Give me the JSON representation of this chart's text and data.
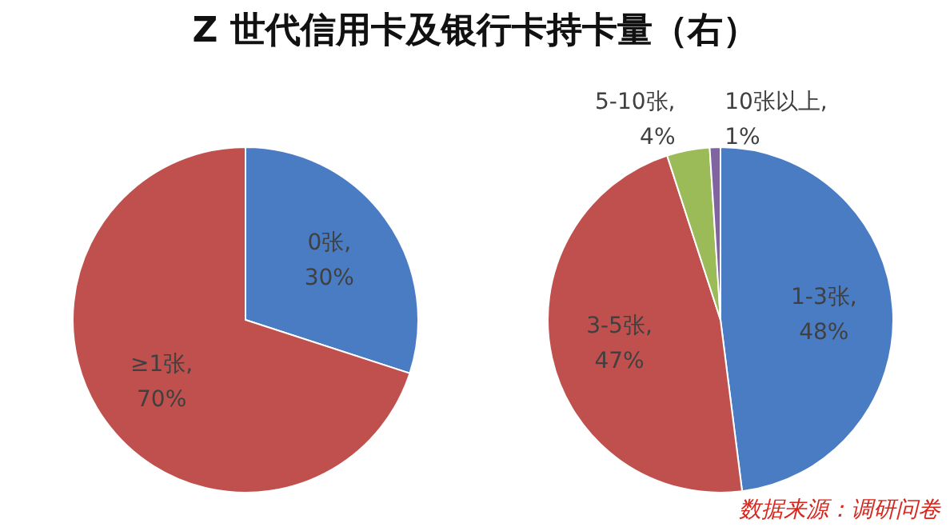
{
  "chart_data": [
    {
      "type": "pie",
      "title": "Z 世代信用卡及银行卡持卡量（右）",
      "categories": [
        "0张",
        "≥1张"
      ],
      "values": [
        30,
        70
      ],
      "colors": [
        "#4a7cc4",
        "#c0504d"
      ],
      "value_labels": [
        ", 30%",
        ", 70%"
      ],
      "legend": false
    },
    {
      "type": "pie",
      "categories": [
        "1-3张",
        "3-5张",
        "5-10张",
        "10张以上"
      ],
      "values": [
        48,
        47,
        4,
        1
      ],
      "colors": [
        "#4a7cc4",
        "#c0504d",
        "#9bbb59",
        "#8064a2"
      ],
      "value_labels": [
        ", 48%",
        ", 47%",
        ", 4%",
        ", 1%"
      ],
      "legend": false,
      "annotations": [
        "数据来源：调研问卷"
      ]
    }
  ]
}
